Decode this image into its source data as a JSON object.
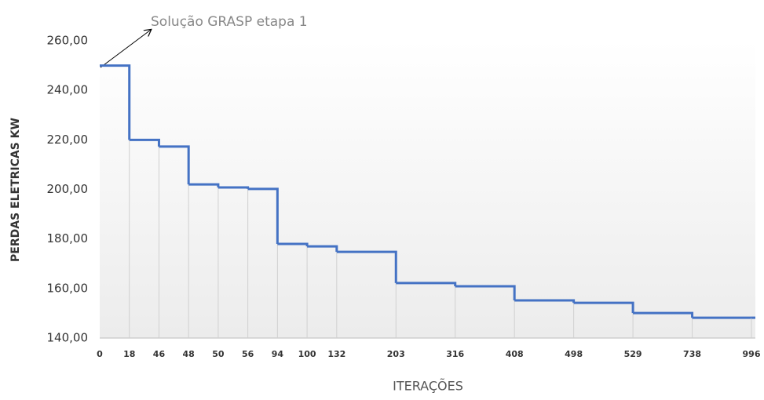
{
  "chart_data": {
    "type": "step",
    "annotation": "Solução GRASP  etapa 1",
    "x_label": "ITERAÇÕES",
    "y_label": "PERDAS ELETRICAS  KW",
    "categories": [
      "0",
      "18",
      "46",
      "48",
      "50",
      "56",
      "94",
      "100",
      "132",
      null,
      "203",
      null,
      "316",
      null,
      "408",
      null,
      "498",
      null,
      "529",
      null,
      "738",
      null,
      "996"
    ],
    "series": [
      {
        "name": "Perdas",
        "color": "#4472c4",
        "values": [
          250,
          220,
          217.3,
          202,
          200.8,
          200.2,
          178,
          177,
          174.8,
          null,
          162.2,
          null,
          160.9,
          null,
          155.2,
          null,
          154.2,
          null,
          150.1,
          null,
          148.2,
          null,
          148.2
        ]
      }
    ],
    "ylim": [
      140,
      260
    ],
    "yticks": [
      {
        "value": 140,
        "label": "140,00"
      },
      {
        "value": 160,
        "label": "160,00"
      },
      {
        "value": 180,
        "label": "180,00"
      },
      {
        "value": 200,
        "label": "200,00"
      },
      {
        "value": 220,
        "label": "220,00"
      },
      {
        "value": 240,
        "label": "240,00"
      },
      {
        "value": 260,
        "label": "260,00"
      }
    ],
    "grid": true
  }
}
